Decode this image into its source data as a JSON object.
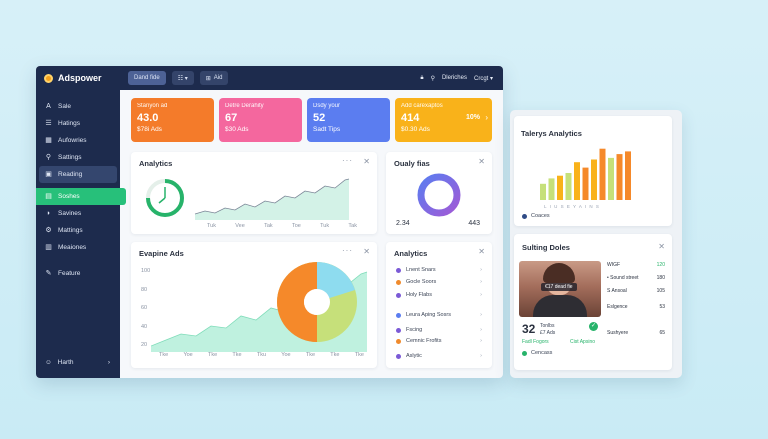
{
  "topbar": {
    "brand": "Adspower",
    "btn_primary": "Dand fide",
    "btn_filter": "☷ ▾",
    "btn_add": "Aid",
    "right_label": "Dleriches",
    "right_menu": "Crcgt ▾"
  },
  "sidebar": {
    "items": [
      {
        "label": "Sale",
        "icon": "A"
      },
      {
        "label": "Hatings",
        "icon": "☰"
      },
      {
        "label": "Aufowries",
        "icon": "▦"
      },
      {
        "label": "Sattings",
        "icon": "⚲"
      },
      {
        "label": "Reading",
        "icon": "▣"
      },
      {
        "label": "Soshes",
        "icon": "▤"
      },
      {
        "label": "Savines",
        "icon": "◗"
      },
      {
        "label": "Mattings",
        "icon": "⚙"
      },
      {
        "label": "Meaiones",
        "icon": "▥"
      },
      {
        "label": "Feature",
        "icon": "✎"
      }
    ],
    "bottom": {
      "label": "Harth",
      "icon": "☺",
      "chevron": "›"
    }
  },
  "stats": [
    {
      "label": "Stanyon ad",
      "value": "43.0",
      "sub": "$78i Ads",
      "color": "#f47b2a"
    },
    {
      "label": "Detre Derahity",
      "value": "67",
      "sub": "$30 Ads",
      "color": "#f4679e"
    },
    {
      "label": "Dsdy your",
      "value": "52",
      "sub": "Sadt Tips",
      "color": "#5b7df0"
    },
    {
      "label": "Add carexaptos",
      "value": "414",
      "sub": "$0.30 Ads",
      "extra": "10%",
      "color": "#f9b21a"
    }
  ],
  "analytics_card": {
    "title": "Analytics",
    "dots": "···",
    "close": "✕",
    "x_labels": [
      "Tuk",
      "Vee",
      "Tak",
      "Toe",
      "Tuk",
      "Tak"
    ]
  },
  "donut_card": {
    "title": "Oualy fias",
    "dots": "···",
    "close": "✕",
    "left_value": "2.34",
    "right_value": "443"
  },
  "expense_card": {
    "title": "Evapine Ads",
    "dots": "···",
    "close": "✕",
    "y_labels": [
      "100",
      "80",
      "60",
      "40",
      "20"
    ],
    "x_labels": [
      "Tke",
      "Yoe",
      "Tke",
      "Tke",
      "Tku",
      "Yoe",
      "Tke",
      "Tke",
      "Tke"
    ]
  },
  "analytics_list": {
    "title": "Analytics",
    "close": "✕",
    "items": [
      {
        "label": "Lnent Snars",
        "color": "#7b5ad6"
      },
      {
        "label": "Gocle Soors",
        "color": "#f08a2c"
      },
      {
        "label": "Holy Flabs",
        "color": "#7b5ad6"
      },
      {
        "label": "Leura Aping Sosrs",
        "color": "#5b7df0"
      },
      {
        "label": "Fscing",
        "color": "#7b5ad6"
      },
      {
        "label": "Cemnic Frofits",
        "color": "#f08a2c"
      },
      {
        "label": "Aslytic",
        "color": "#7b5ad6"
      }
    ],
    "arrow": "›"
  },
  "talent_card": {
    "title": "Talerys Analytics",
    "axis": "L I U S E Y A I N S",
    "legend": "Coaces",
    "legend_color": "#2f4b86"
  },
  "sorting_card": {
    "title": "Sulting Doles",
    "close": "✕",
    "photo_tag": "€17 dead fie",
    "rows": [
      {
        "label": "WIGF",
        "value": "120",
        "color": "#27b36a"
      },
      {
        "label": "• Sound street",
        "value": "180",
        "color": "#3b4456"
      },
      {
        "label": "S Ansoal",
        "value": "105",
        "color": "#3b4456"
      },
      {
        "label": "Eslgence",
        "value": "53",
        "color": "#3b4456"
      },
      {
        "label": "Sushyere",
        "value": "65",
        "color": "#3b4456"
      }
    ],
    "big_value": "32",
    "big_line1": "Tonlbs",
    "big_line2": "£7 Ads",
    "check": "✓",
    "green_left": "Fadl Fogors",
    "green_right": "Cist Apsino",
    "bottom_label": "Cencass"
  }
}
